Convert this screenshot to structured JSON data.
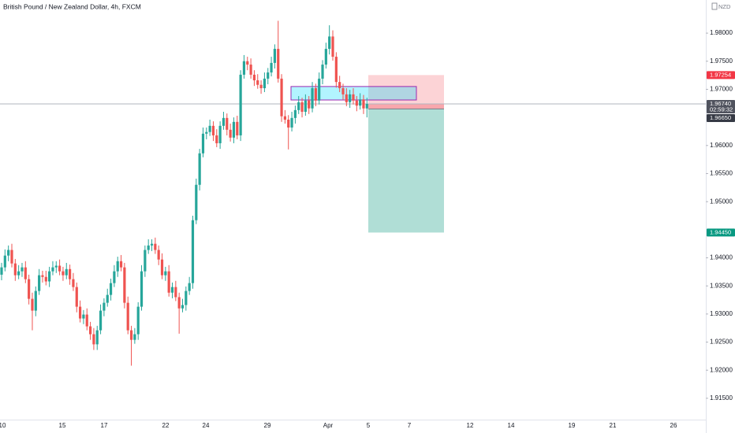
{
  "chart_data": {
    "type": "candlestick",
    "title": "British Pound / New Zealand Dollar, 4h, FXCM",
    "currency": "NZD",
    "up_color": "#26a69a",
    "down_color": "#ef5350",
    "ylim": [
      1.9112,
      1.9859
    ],
    "yticks": [
      {
        "value": 1.98,
        "label": "1.98000"
      },
      {
        "value": 1.975,
        "label": "1.97500"
      },
      {
        "value": 1.97,
        "label": "1.97000"
      },
      {
        "value": 1.96,
        "label": "1.96000"
      },
      {
        "value": 1.955,
        "label": "1.95500"
      },
      {
        "value": 1.95,
        "label": "1.95000"
      },
      {
        "value": 1.94,
        "label": "1.94000"
      },
      {
        "value": 1.935,
        "label": "1.93500"
      },
      {
        "value": 1.93,
        "label": "1.93000"
      },
      {
        "value": 1.925,
        "label": "1.92500"
      },
      {
        "value": 1.92,
        "label": "1.92000"
      },
      {
        "value": 1.915,
        "label": "1.91500"
      }
    ],
    "xticks": [
      "10",
      "15",
      "17",
      "22",
      "24",
      "29",
      "Apr",
      "5",
      "7",
      "12",
      "14",
      "19",
      "21",
      "26"
    ],
    "last_price": {
      "value": 1.9674,
      "label": "1.96740",
      "countdown": "02:59:32"
    },
    "position": {
      "stop": {
        "value": 1.97254,
        "label": "1.97254"
      },
      "entry": {
        "value": 1.9665,
        "label": "1.96650"
      },
      "target": {
        "value": 1.9445,
        "label": "1.94450"
      }
    },
    "zone": {
      "top": 1.9705,
      "bottom": 1.9681
    },
    "ohlc": [
      [
        1.937,
        1.9391,
        1.936,
        1.9383
      ],
      [
        1.9383,
        1.9415,
        1.9376,
        1.9404
      ],
      [
        1.9404,
        1.9422,
        1.9394,
        1.9414
      ],
      [
        1.9414,
        1.9425,
        1.9383,
        1.939
      ],
      [
        1.939,
        1.9398,
        1.9359,
        1.9369
      ],
      [
        1.9369,
        1.9387,
        1.9362,
        1.9376
      ],
      [
        1.9376,
        1.9391,
        1.9366,
        1.9383
      ],
      [
        1.9383,
        1.9394,
        1.9355,
        1.9362
      ],
      [
        1.9362,
        1.937,
        1.9317,
        1.9327
      ],
      [
        1.9327,
        1.9338,
        1.9271,
        1.9306
      ],
      [
        1.9306,
        1.9349,
        1.9296,
        1.9341
      ],
      [
        1.9341,
        1.938,
        1.9334,
        1.9369
      ],
      [
        1.9369,
        1.9377,
        1.9356,
        1.9366
      ],
      [
        1.9366,
        1.9377,
        1.9351,
        1.9358
      ],
      [
        1.9358,
        1.9384,
        1.9348,
        1.9376
      ],
      [
        1.9376,
        1.9394,
        1.9369,
        1.9383
      ],
      [
        1.9383,
        1.9394,
        1.9373,
        1.9386
      ],
      [
        1.9386,
        1.9397,
        1.9369,
        1.9376
      ],
      [
        1.9376,
        1.9384,
        1.9359,
        1.9369
      ],
      [
        1.9369,
        1.9391,
        1.9362,
        1.938
      ],
      [
        1.938,
        1.9388,
        1.9352,
        1.9362
      ],
      [
        1.9362,
        1.9373,
        1.9341,
        1.9348
      ],
      [
        1.9348,
        1.9356,
        1.9303,
        1.9313
      ],
      [
        1.9313,
        1.9324,
        1.9285,
        1.9292
      ],
      [
        1.9292,
        1.9307,
        1.9282,
        1.9299
      ],
      [
        1.9299,
        1.931,
        1.9271,
        1.9278
      ],
      [
        1.9278,
        1.9286,
        1.9254,
        1.9264
      ],
      [
        1.9264,
        1.9275,
        1.9236,
        1.9246
      ],
      [
        1.9246,
        1.9279,
        1.9236,
        1.9271
      ],
      [
        1.9271,
        1.9317,
        1.9264,
        1.9306
      ],
      [
        1.9306,
        1.9328,
        1.9296,
        1.932
      ],
      [
        1.932,
        1.9345,
        1.9313,
        1.9334
      ],
      [
        1.9334,
        1.9363,
        1.9324,
        1.9355
      ],
      [
        1.9355,
        1.9387,
        1.9348,
        1.9376
      ],
      [
        1.9376,
        1.9402,
        1.9366,
        1.9394
      ],
      [
        1.9394,
        1.9405,
        1.9376,
        1.9383
      ],
      [
        1.9383,
        1.9391,
        1.931,
        1.932
      ],
      [
        1.932,
        1.9331,
        1.9264,
        1.9271
      ],
      [
        1.9271,
        1.9279,
        1.9208,
        1.9254
      ],
      [
        1.9254,
        1.9275,
        1.9247,
        1.9264
      ],
      [
        1.9264,
        1.9321,
        1.9254,
        1.9313
      ],
      [
        1.9313,
        1.9387,
        1.9306,
        1.9376
      ],
      [
        1.9376,
        1.9422,
        1.9366,
        1.9414
      ],
      [
        1.9414,
        1.9433,
        1.9407,
        1.9422
      ],
      [
        1.9422,
        1.9433,
        1.9412,
        1.9425
      ],
      [
        1.9425,
        1.9436,
        1.9407,
        1.9414
      ],
      [
        1.9414,
        1.9422,
        1.9387,
        1.9397
      ],
      [
        1.9397,
        1.9408,
        1.9362,
        1.9369
      ],
      [
        1.9369,
        1.9384,
        1.9359,
        1.9376
      ],
      [
        1.9376,
        1.9387,
        1.9331,
        1.9338
      ],
      [
        1.9338,
        1.9356,
        1.9328,
        1.9348
      ],
      [
        1.9348,
        1.9359,
        1.9323,
        1.933
      ],
      [
        1.933,
        1.9338,
        1.9265,
        1.931
      ],
      [
        1.931,
        1.9327,
        1.9303,
        1.9316
      ],
      [
        1.9316,
        1.9349,
        1.9306,
        1.9341
      ],
      [
        1.9341,
        1.9366,
        1.9334,
        1.9355
      ],
      [
        1.9355,
        1.9475,
        1.9345,
        1.9467
      ],
      [
        1.9467,
        1.9541,
        1.946,
        1.953
      ],
      [
        1.953,
        1.9594,
        1.952,
        1.9586
      ],
      [
        1.9586,
        1.9632,
        1.9579,
        1.9621
      ],
      [
        1.9621,
        1.9632,
        1.9611,
        1.9624
      ],
      [
        1.9624,
        1.9646,
        1.9617,
        1.9635
      ],
      [
        1.9635,
        1.9643,
        1.9608,
        1.9618
      ],
      [
        1.9618,
        1.9629,
        1.9597,
        1.9604
      ],
      [
        1.9604,
        1.9643,
        1.9594,
        1.9635
      ],
      [
        1.9635,
        1.966,
        1.9628,
        1.9649
      ],
      [
        1.9649,
        1.9657,
        1.9618,
        1.9628
      ],
      [
        1.9628,
        1.9639,
        1.9607,
        1.9614
      ],
      [
        1.9614,
        1.965,
        1.9604,
        1.9642
      ],
      [
        1.9642,
        1.9653,
        1.9611,
        1.9618
      ],
      [
        1.9618,
        1.9734,
        1.9608,
        1.9726
      ],
      [
        1.9726,
        1.9761,
        1.9719,
        1.975
      ],
      [
        1.975,
        1.9758,
        1.9734,
        1.9744
      ],
      [
        1.9744,
        1.9755,
        1.9719,
        1.9726
      ],
      [
        1.9726,
        1.9734,
        1.9706,
        1.9716
      ],
      [
        1.9716,
        1.9727,
        1.9701,
        1.9708
      ],
      [
        1.9708,
        1.9716,
        1.9692,
        1.9702
      ],
      [
        1.9702,
        1.973,
        1.9695,
        1.9719
      ],
      [
        1.9719,
        1.9738,
        1.9709,
        1.973
      ],
      [
        1.973,
        1.9758,
        1.9723,
        1.9747
      ],
      [
        1.9747,
        1.978,
        1.9737,
        1.9772
      ],
      [
        1.9772,
        1.9822,
        1.9712,
        1.9719
      ],
      [
        1.9719,
        1.9727,
        1.9642,
        1.9652
      ],
      [
        1.9652,
        1.9663,
        1.9639,
        1.9646
      ],
      [
        1.9646,
        1.9654,
        1.9593,
        1.9632
      ],
      [
        1.9632,
        1.966,
        1.9625,
        1.9649
      ],
      [
        1.9649,
        1.9671,
        1.9639,
        1.9663
      ],
      [
        1.9663,
        1.9688,
        1.9656,
        1.9677
      ],
      [
        1.9677,
        1.9685,
        1.965,
        1.966
      ],
      [
        1.966,
        1.9691,
        1.9653,
        1.968
      ],
      [
        1.968,
        1.9688,
        1.9656,
        1.9666
      ],
      [
        1.9666,
        1.9713,
        1.9659,
        1.9702
      ],
      [
        1.9702,
        1.971,
        1.967,
        1.968
      ],
      [
        1.968,
        1.973,
        1.9673,
        1.9719
      ],
      [
        1.9719,
        1.9752,
        1.9709,
        1.9744
      ],
      [
        1.9744,
        1.9783,
        1.9737,
        1.9772
      ],
      [
        1.9772,
        1.9814,
        1.9762,
        1.9794
      ],
      [
        1.9794,
        1.9805,
        1.9751,
        1.9758
      ],
      [
        1.9758,
        1.9766,
        1.9703,
        1.9713
      ],
      [
        1.9713,
        1.9724,
        1.9695,
        1.9702
      ],
      [
        1.9702,
        1.971,
        1.9681,
        1.9691
      ],
      [
        1.9691,
        1.9702,
        1.967,
        1.9677
      ],
      [
        1.9677,
        1.9699,
        1.9667,
        1.9691
      ],
      [
        1.9691,
        1.9702,
        1.9673,
        1.968
      ],
      [
        1.968,
        1.9688,
        1.9661,
        1.9671
      ],
      [
        1.9671,
        1.9693,
        1.9664,
        1.9682
      ],
      [
        1.9682,
        1.969,
        1.9656,
        1.9666
      ],
      [
        1.9666,
        1.9685,
        1.965,
        1.9674
      ]
    ]
  }
}
